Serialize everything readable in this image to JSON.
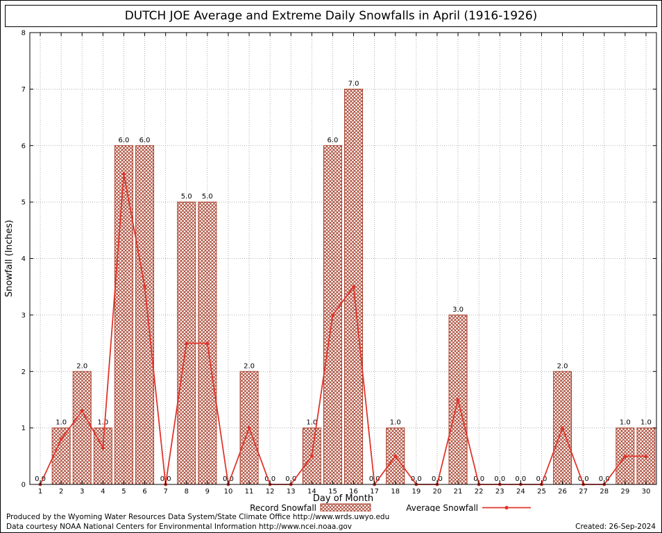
{
  "title": "DUTCH JOE Average and Extreme Daily Snowfalls in April (1916-1926)",
  "footer": {
    "line1": "Produced by the Wyoming Water Resources Data System/State Climate Office http://www.wrds.uwyo.edu",
    "line2": "Data courtesy NOAA National Centers for Environmental Information http://www.ncei.noaa.gov",
    "created": "Created: 26-Sep-2024"
  },
  "chart_data": {
    "type": "bar",
    "title": "DUTCH JOE Average and Extreme Daily Snowfalls in April (1916-1926)",
    "xlabel": "Day of Month",
    "ylabel": "Snowfall (Inches)",
    "ylim": [
      0,
      8
    ],
    "yticks": [
      0,
      1,
      2,
      3,
      4,
      5,
      6,
      7,
      8
    ],
    "grid": true,
    "legend_position": "bottom",
    "bar_value_labels": true,
    "categories": [
      1,
      2,
      3,
      4,
      5,
      6,
      7,
      8,
      9,
      10,
      11,
      12,
      13,
      14,
      15,
      16,
      17,
      18,
      19,
      20,
      21,
      22,
      23,
      24,
      25,
      26,
      27,
      28,
      29,
      30
    ],
    "series": [
      {
        "name": "Record Snowfall",
        "type": "bar",
        "values": [
          0,
          1,
          2,
          1,
          6,
          6,
          0,
          5,
          5,
          0,
          2,
          0,
          0,
          1,
          6,
          7,
          0,
          1,
          0,
          0,
          3,
          0,
          0,
          0,
          0,
          2,
          0,
          0,
          1,
          1
        ]
      },
      {
        "name": "Average Snowfall",
        "type": "line",
        "values": [
          0,
          0.8,
          1.3,
          0.65,
          5.5,
          3.5,
          0,
          2.5,
          2.5,
          0,
          1,
          0,
          0,
          0.5,
          3,
          3.5,
          0,
          0.5,
          0,
          0,
          1.5,
          0,
          0,
          0,
          0,
          1,
          0,
          0,
          0.5,
          0.5
        ]
      }
    ],
    "colors": {
      "bar": "#a8402c",
      "line": "#e0352b",
      "grid": "#999999",
      "text": "#000000"
    }
  }
}
